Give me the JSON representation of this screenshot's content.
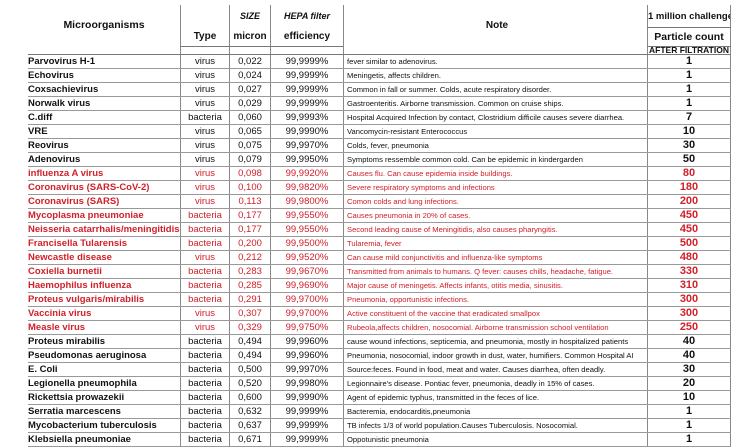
{
  "header": {
    "microorganisms": "Microorganisms",
    "type": "Type",
    "size_top": "SIZE",
    "size_unit": "micron",
    "hepa_top": "HEPA filter",
    "hepa_bottom": "efficiency",
    "note": "Note",
    "challenge": "1 million challenge",
    "particle_count": "Particle count",
    "after_filtration": "AFTER FILTRATION"
  },
  "colors": {
    "highlight": "#d0202a",
    "text": "#111111"
  },
  "rows": [
    {
      "name": "Parvovirus H-1",
      "type": "virus",
      "size": "0,022",
      "eff": "99,9999%",
      "note": "fever similar to adenovirus.",
      "count": "1",
      "red": false
    },
    {
      "name": "Echovirus",
      "type": "virus",
      "size": "0,024",
      "eff": "99,9999%",
      "note": "Meningetis, affects children.",
      "count": "1",
      "red": false
    },
    {
      "name": "Coxsachievirus",
      "type": "virus",
      "size": "0,027",
      "eff": "99,9999%",
      "note": "Common in fall or summer. Colds, acute respiratory disorder.",
      "count": "1",
      "red": false
    },
    {
      "name": "Norwalk virus",
      "type": "virus",
      "size": "0,029",
      "eff": "99,9999%",
      "note": "Gastroenteritis. Airborne transmission. Common on cruise ships.",
      "count": "1",
      "red": false
    },
    {
      "name": "C.diff",
      "type": "bacteria",
      "size": "0,060",
      "eff": "99,9993%",
      "note": "Hospital Acquired Infection by contact, Clostridium difficile causes severe diarrhea.",
      "count": "7",
      "red": false
    },
    {
      "name": "VRE",
      "type": "virus",
      "size": "0,065",
      "eff": "99,9990%",
      "note": "Vancomycin-resistant Enterococcus",
      "count": "10",
      "red": false
    },
    {
      "name": "Reovirus",
      "type": "virus",
      "size": "0,075",
      "eff": "99,9970%",
      "note": "Colds, fever, pneumonia",
      "count": "30",
      "red": false
    },
    {
      "name": "Adenovirus",
      "type": "virus",
      "size": "0,079",
      "eff": "99,9950%",
      "note": "Symptoms ressemble common cold. Can be epidemic in kindergarden",
      "count": "50",
      "red": false
    },
    {
      "name": "influenza A virus",
      "type": "virus",
      "size": "0,098",
      "eff": "99,9920%",
      "note": "Causes flu. Can cause epidemia inside buildings.",
      "count": "80",
      "red": true
    },
    {
      "name": "Coronavirus (SARS-CoV-2)",
      "type": "virus",
      "size": "0,100",
      "eff": "99,9820%",
      "note": "Severe respiratory symptoms and infections",
      "count": "180",
      "red": true
    },
    {
      "name": "Coronavirus (SARS)",
      "type": "virus",
      "size": "0,113",
      "eff": "99,9800%",
      "note": "Comon colds and lung infections.",
      "count": "200",
      "red": true
    },
    {
      "name": "Mycoplasma pneumoniae",
      "type": "bacteria",
      "size": "0,177",
      "eff": "99,9550%",
      "note": "Causes pneumonia in 20% of cases.",
      "count": "450",
      "red": true
    },
    {
      "name": "Neisseria catarrhalis/meningitidis",
      "type": "bacteria",
      "size": "0,177",
      "eff": "99,9550%",
      "note": "Second leading cause of Meningitidis, also causes pharyngitis.",
      "count": "450",
      "red": true
    },
    {
      "name": "Francisella Tularensis",
      "type": "bacteria",
      "size": "0,200",
      "eff": "99,9500%",
      "note": "Tularemia, fever",
      "count": "500",
      "red": true
    },
    {
      "name": "Newcastle disease",
      "type": "virus",
      "size": "0,212",
      "eff": "99,9520%",
      "note": "Can cause mild conjunctivitis and influenza-like symptoms",
      "count": "480",
      "red": true
    },
    {
      "name": "Coxiella burnetii",
      "type": "bacteria",
      "size": "0,283",
      "eff": "99,9670%",
      "note": "Transmitted from animals to humans.  Q fever: causes chills, headache, fatigue.",
      "count": "330",
      "red": true
    },
    {
      "name": "Haemophilus influenza",
      "type": "bacteria",
      "size": "0,285",
      "eff": "99,9690%",
      "note": "Major cause of meningetis. Affects infants, otitis media, sinusitis.",
      "count": "310",
      "red": true
    },
    {
      "name": "Proteus vulgaris/mirabilis",
      "type": "bacteria",
      "size": "0,291",
      "eff": "99,9700%",
      "note": "Pneumonia, opportunistic infections.",
      "count": "300",
      "red": true
    },
    {
      "name": "Vaccinia virus",
      "type": "virus",
      "size": "0,307",
      "eff": "99,9700%",
      "note": "Active constituent of the vaccine that eradicated smallpox",
      "count": "300",
      "red": true
    },
    {
      "name": "Measle virus",
      "type": "virus",
      "size": "0,329",
      "eff": "99,9750%",
      "note": "Rubeola,affects children, nosocomial. Airborne transmission school ventilation",
      "count": "250",
      "red": true
    },
    {
      "name": "Proteus mirabilis",
      "type": "bacteria",
      "size": "0,494",
      "eff": "99,9960%",
      "note": "cause wound infections, septicemia, and pneumonia, mostly in hospitalized patients",
      "count": "40",
      "red": false
    },
    {
      "name": "Pseudomonas aeruginosa",
      "type": "bacteria",
      "size": "0,494",
      "eff": "99,9960%",
      "note": "Pneumonia, nosocomial, indoor growth in dust, water, humifiers. Common Hospital AI",
      "count": "40",
      "red": false
    },
    {
      "name": "E. Coli",
      "type": "bacteria",
      "size": "0,500",
      "eff": "99,9970%",
      "note": "Source:feces. Found in food, meat and water. Causes diarrhea, often deadly.",
      "count": "30",
      "red": false
    },
    {
      "name": "Legionella pneumophila",
      "type": "bacteria",
      "size": "0,520",
      "eff": "99,9980%",
      "note": "Legionnaire's disease. Pontiac fever, pneumonia, deadly in 15% of cases.",
      "count": "20",
      "red": false
    },
    {
      "name": "Rickettsia prowazekii",
      "type": "bacteria",
      "size": "0,600",
      "eff": "99,9990%",
      "note": "Agent of epidemic typhus, transmitted in the feces of lice.",
      "count": "10",
      "red": false
    },
    {
      "name": "Serratia marcescens",
      "type": "bacteria",
      "size": "0,632",
      "eff": "99,9999%",
      "note": "Bacteremia, endocarditis,pneumonia",
      "count": "1",
      "red": false
    },
    {
      "name": "Mycobacterium tuberculosis",
      "type": "bacteria",
      "size": "0,637",
      "eff": "99,9999%",
      "note": "TB infects 1/3 of world population.Causes Tuberculosis. Nosocomial.",
      "count": "1",
      "red": false
    },
    {
      "name": "Klebsiella pneumoniae",
      "type": "bacteria",
      "size": "0,671",
      "eff": "99,9999%",
      "note": "Oppotunistic pneumonia",
      "count": "1",
      "red": false
    }
  ]
}
